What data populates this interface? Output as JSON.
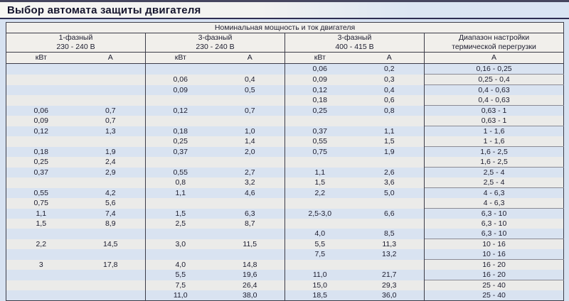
{
  "title": "Выбор автомата защиты двигателя",
  "colors": {
    "top_bar": "#46465f",
    "title_underline": "#2d2d52",
    "page_background": "#d7e2f1",
    "row_blue": "#d9e3f1",
    "row_gray": "#ebebe9",
    "header_background": "#f1efeb",
    "border_dark": "#3c3c48",
    "range_separator": "#8b8b95"
  },
  "table": {
    "main_header": "Номинальная мощность и ток двигателя",
    "groups": [
      {
        "line1": "1-фазный",
        "line2": "230 - 240 В",
        "sub": [
          "кВт",
          "А"
        ]
      },
      {
        "line1": "3-фазный",
        "line2": "230 - 240 В",
        "sub": [
          "кВт",
          "А"
        ]
      },
      {
        "line1": "3-фазный",
        "line2": "400 - 415 В",
        "sub": [
          "кВт",
          "А"
        ]
      },
      {
        "line1": "Диапазон настройки",
        "line2": "термической перегрузки",
        "sub": [
          "А"
        ]
      }
    ],
    "rows": [
      {
        "c": [
          "",
          "",
          "",
          "",
          "0,06",
          "0,2",
          "0,16 - 0,25"
        ],
        "sep": true
      },
      {
        "c": [
          "",
          "",
          "0,06",
          "0,4",
          "0,09",
          "0,3",
          "0,25 - 0,4"
        ],
        "sep": true
      },
      {
        "c": [
          "",
          "",
          "0,09",
          "0,5",
          "0,12",
          "0,4",
          "0,4 - 0,63"
        ],
        "sep": false
      },
      {
        "c": [
          "",
          "",
          "",
          "",
          "0,18",
          "0,6",
          "0,4 - 0,63"
        ],
        "sep": true
      },
      {
        "c": [
          "0,06",
          "0,7",
          "0,12",
          "0,7",
          "0,25",
          "0,8",
          "0,63 - 1"
        ],
        "sep": false
      },
      {
        "c": [
          "0,09",
          "0,7",
          "",
          "",
          "",
          "",
          "0,63 - 1"
        ],
        "sep": true
      },
      {
        "c": [
          "0,12",
          "1,3",
          "0,18",
          "1,0",
          "0,37",
          "1,1",
          "1 - 1,6"
        ],
        "sep": false
      },
      {
        "c": [
          "",
          "",
          "0,25",
          "1,4",
          "0,55",
          "1,5",
          "1 - 1,6"
        ],
        "sep": true
      },
      {
        "c": [
          "0,18",
          "1,9",
          "0,37",
          "2,0",
          "0,75",
          "1,9",
          "1,6 - 2,5"
        ],
        "sep": false
      },
      {
        "c": [
          "0,25",
          "2,4",
          "",
          "",
          "",
          "",
          "1,6 - 2,5"
        ],
        "sep": true
      },
      {
        "c": [
          "0,37",
          "2,9",
          "0,55",
          "2,7",
          "1,1",
          "2,6",
          "2,5 - 4"
        ],
        "sep": false
      },
      {
        "c": [
          "",
          "",
          "0,8",
          "3,2",
          "1,5",
          "3,6",
          "2,5 - 4"
        ],
        "sep": true
      },
      {
        "c": [
          "0,55",
          "4,2",
          "1,1",
          "4,6",
          "2,2",
          "5,0",
          "4 - 6,3"
        ],
        "sep": false
      },
      {
        "c": [
          "0,75",
          "5,6",
          "",
          "",
          "",
          "",
          "4 - 6,3"
        ],
        "sep": true
      },
      {
        "c": [
          "1,1",
          "7,4",
          "1,5",
          "6,3",
          "2,5-3,0",
          "6,6",
          "6,3 - 10"
        ],
        "sep": false
      },
      {
        "c": [
          "1,5",
          "8,9",
          "2,5",
          "8,7",
          "",
          "",
          "6,3 - 10"
        ],
        "sep": false
      },
      {
        "c": [
          "",
          "",
          "",
          "",
          "4,0",
          "8,5",
          "6,3 - 10"
        ],
        "sep": true
      },
      {
        "c": [
          "2,2",
          "14,5",
          "3,0",
          "11,5",
          "5,5",
          "11,3",
          "10 - 16"
        ],
        "sep": false
      },
      {
        "c": [
          "",
          "",
          "",
          "",
          "7,5",
          "13,2",
          "10 - 16"
        ],
        "sep": true
      },
      {
        "c": [
          "3",
          "17,8",
          "4,0",
          "14,8",
          "",
          "",
          "16 - 20"
        ],
        "sep": false
      },
      {
        "c": [
          "",
          "",
          "5,5",
          "19,6",
          "11,0",
          "21,7",
          "16 - 20"
        ],
        "sep": true
      },
      {
        "c": [
          "",
          "",
          "7,5",
          "26,4",
          "15,0",
          "29,3",
          "25 - 40"
        ],
        "sep": false
      },
      {
        "c": [
          "",
          "",
          "11,0",
          "38,0",
          "18,5",
          "36,0",
          "25 - 40"
        ],
        "sep": false
      }
    ]
  }
}
